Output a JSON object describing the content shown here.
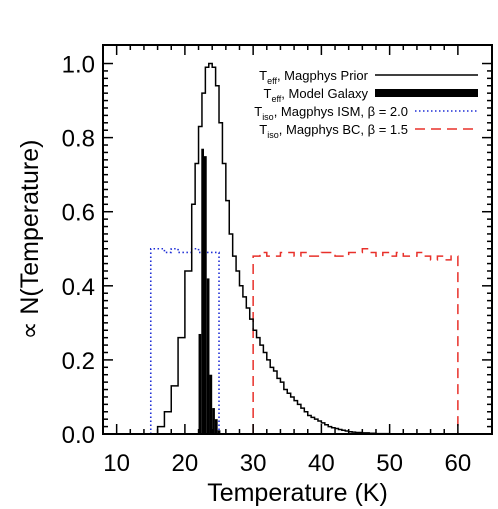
{
  "chart_data": {
    "type": "step-histogram",
    "xlabel": "Temperature (K)",
    "ylabel": "∝ N(Temperature)",
    "xlim": [
      8,
      65
    ],
    "ylim": [
      0,
      1.05
    ],
    "x_ticks": [
      10,
      20,
      30,
      40,
      50,
      60
    ],
    "y_ticks": [
      0.0,
      0.2,
      0.4,
      0.6,
      0.8,
      1.0
    ],
    "y_tick_labels": [
      "0.0",
      "0.2",
      "0.4",
      "0.6",
      "0.8",
      "1.0"
    ],
    "legend_position": "top-right",
    "series": [
      {
        "key": "prior",
        "label_main": "T",
        "label_sub": "eff",
        "label_rest": ", Magphys Prior",
        "style": "solid",
        "color": "#000000",
        "bin_edges": [
          16.0,
          17.0,
          18.0,
          19.0,
          20.0,
          21.0,
          21.5,
          22.0,
          22.5,
          23.0,
          23.5,
          24.0,
          24.5,
          25.0,
          25.5,
          26.0,
          26.5,
          27.0,
          27.5,
          28.0,
          28.5,
          29.0,
          29.5,
          30.0,
          30.5,
          31.0,
          31.5,
          32.0,
          32.5,
          33.0,
          33.5,
          34.0,
          34.5,
          35.0,
          35.5,
          36.0,
          36.5,
          37.0,
          37.5,
          38.0,
          38.5,
          39.0,
          39.5,
          40.0,
          40.5,
          41.0,
          41.5,
          42.0,
          42.5,
          43.0,
          43.5,
          44.0,
          44.5,
          45.0,
          46.0,
          47.0,
          48.0,
          50.0
        ],
        "values": [
          0.02,
          0.06,
          0.13,
          0.26,
          0.44,
          0.62,
          0.73,
          0.83,
          0.92,
          0.99,
          1.0,
          0.99,
          0.94,
          0.84,
          0.73,
          0.63,
          0.54,
          0.48,
          0.44,
          0.4,
          0.37,
          0.34,
          0.31,
          0.28,
          0.26,
          0.24,
          0.22,
          0.2,
          0.18,
          0.17,
          0.15,
          0.14,
          0.12,
          0.11,
          0.1,
          0.09,
          0.08,
          0.07,
          0.06,
          0.05,
          0.045,
          0.04,
          0.035,
          0.03,
          0.025,
          0.02,
          0.017,
          0.015,
          0.012,
          0.01,
          0.008,
          0.006,
          0.005,
          0.004,
          0.003,
          0.002,
          0.001
        ]
      },
      {
        "key": "model",
        "label_main": "T",
        "label_sub": "eff",
        "label_rest": ", Model Galaxy",
        "style": "filled",
        "color": "#000000",
        "bin_edges": [
          22.0,
          22.4,
          22.8,
          23.2,
          23.6,
          24.0,
          24.4,
          24.8,
          25.2
        ],
        "values": [
          0.27,
          0.77,
          0.75,
          0.42,
          0.16,
          0.07,
          0.04,
          0.01
        ]
      },
      {
        "key": "ism",
        "label_main": "T",
        "label_sub": "iso",
        "label_rest": ", Magphys ISM, β = 2.0",
        "style": "dotted",
        "color": "#1f2fd6",
        "bin_edges": [
          15,
          16,
          17,
          18,
          19,
          20,
          21,
          22,
          23,
          24,
          25
        ],
        "values": [
          0.5,
          0.5,
          0.49,
          0.5,
          0.49,
          0.49,
          0.5,
          0.49,
          0.49,
          0.49
        ]
      },
      {
        "key": "bc",
        "label_main": "T",
        "label_sub": "iso",
        "label_rest": ", Magphys BC, β = 1.5",
        "style": "dashed",
        "color": "#e8302a",
        "bin_edges": [
          30,
          31,
          32,
          33,
          34,
          35,
          36,
          37,
          38,
          39,
          40,
          41,
          42,
          43,
          44,
          45,
          46,
          47,
          48,
          49,
          50,
          51,
          52,
          53,
          54,
          55,
          56,
          57,
          58,
          59,
          60
        ],
        "values": [
          0.48,
          0.49,
          0.48,
          0.48,
          0.49,
          0.49,
          0.48,
          0.49,
          0.48,
          0.48,
          0.49,
          0.49,
          0.48,
          0.48,
          0.49,
          0.49,
          0.5,
          0.49,
          0.48,
          0.49,
          0.48,
          0.49,
          0.48,
          0.48,
          0.49,
          0.48,
          0.47,
          0.48,
          0.47,
          0.48
        ]
      }
    ]
  }
}
